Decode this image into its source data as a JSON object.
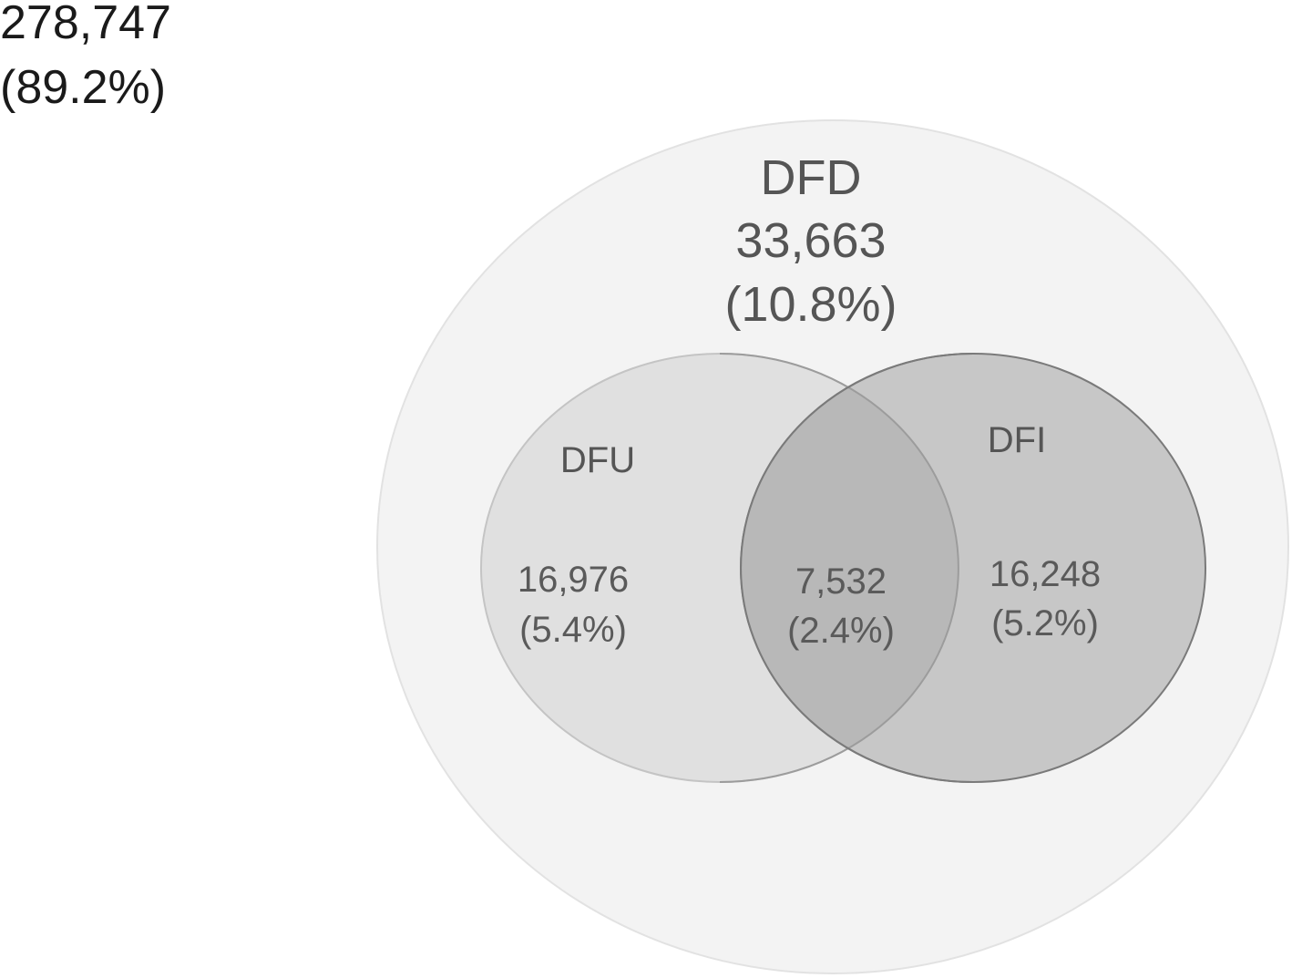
{
  "outside": {
    "count": "278,747",
    "percent": "(89.2%)"
  },
  "dfd": {
    "name": "DFD",
    "count": "33,663",
    "percent": "(10.8%)",
    "fill": "#f3f3f3",
    "stroke": "#e2e2e2"
  },
  "dfu": {
    "name": "DFU",
    "count": "16,976",
    "percent": "(5.4%)",
    "fill": "#e0e0e0",
    "stroke": "#c4c4c4"
  },
  "dfi": {
    "name": "DFI",
    "count": "16,248",
    "percent": "(5.2%)",
    "fill": "#c7c7c7",
    "stroke": "#7a7a7a"
  },
  "overlap": {
    "count": "7,532",
    "percent": "(2.4%)",
    "fill": "#b8b8b8"
  }
}
